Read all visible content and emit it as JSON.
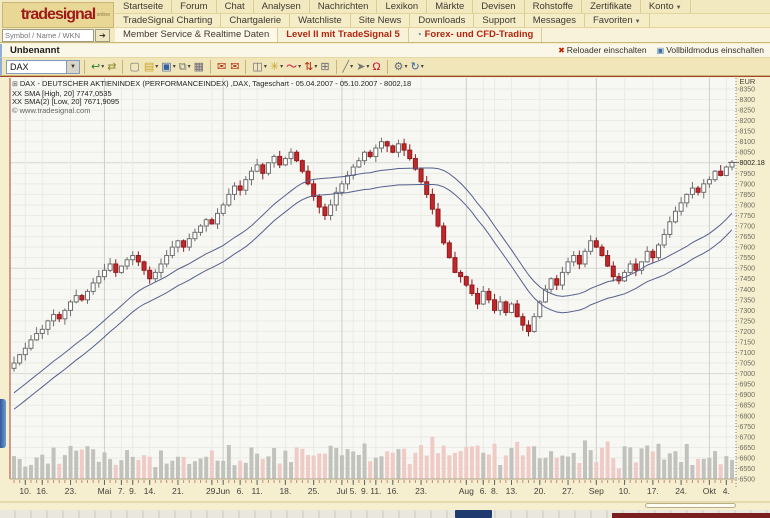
{
  "header": {
    "logo": {
      "brand": "tradesignal",
      "sub": "online"
    },
    "search": {
      "placeholder": "Symbol / Name / WKN",
      "go_label": "➔"
    },
    "menu_row1": [
      {
        "label": "Startseite"
      },
      {
        "label": "Forum"
      },
      {
        "label": "Chat"
      },
      {
        "label": "Analysen"
      },
      {
        "label": "Nachrichten"
      },
      {
        "label": "Lexikon"
      },
      {
        "label": "Märkte"
      },
      {
        "label": "Devisen"
      },
      {
        "label": "Rohstoffe"
      },
      {
        "label": "Zertifikate"
      },
      {
        "label": "Konto",
        "caret": true
      }
    ],
    "menu_row2": [
      {
        "label": "TradeSignal Charting"
      },
      {
        "label": "Chartgalerie"
      },
      {
        "label": "Watchliste"
      },
      {
        "label": "Site News"
      },
      {
        "label": "Downloads"
      },
      {
        "label": "Support"
      },
      {
        "label": "Messages"
      },
      {
        "label": "Favoriten",
        "caret": true
      }
    ],
    "menu_row3": [
      {
        "label": "Member Service & Realtime Daten",
        "style": "plain-cell"
      },
      {
        "label": "Level II mit TradeSignal 5",
        "style": "red"
      },
      {
        "label": "Forex- und CFD-Trading",
        "style": "red",
        "icon": "◔"
      }
    ]
  },
  "titlebar": {
    "title": "Unbenannt",
    "reloader_label": "Reloader einschalten",
    "fullscreen_label": "Vollbildmodus einschalten"
  },
  "toolbar": {
    "symbol_value": "DAX"
  },
  "chart": {
    "legend_title": "DAX - DEUTSCHER AKTIENINDEX (PERFORMANCEINDEX) ,DAX, Tageschart - 05.04.2007 - 05.10.2007 - 8002,18",
    "legend_sma_high": "XX SMA [High, 20] 7747,0535",
    "legend_sma_low": "XX SMA(2) [Low, 20] 7671,9095",
    "copyright": "© www.tradesignal.com",
    "currency_label": "EUR",
    "last_price_label": "8002.18"
  },
  "chart_data": {
    "type": "candlestick",
    "symbol": "DAX",
    "period": "Tageschart",
    "date_range": "05.04.2007 - 05.10.2007",
    "last_price": 8002.18,
    "y_min": 6500,
    "y_max": 8350,
    "y_step": 50,
    "major_lines": [
      8000,
      7500,
      7000,
      6500
    ],
    "closes": [
      7050,
      7090,
      7120,
      7160,
      7190,
      7210,
      7250,
      7280,
      7260,
      7300,
      7340,
      7370,
      7350,
      7390,
      7430,
      7460,
      7490,
      7520,
      7480,
      7510,
      7540,
      7560,
      7530,
      7490,
      7450,
      7480,
      7520,
      7560,
      7600,
      7630,
      7600,
      7640,
      7670,
      7700,
      7730,
      7710,
      7760,
      7800,
      7850,
      7890,
      7870,
      7920,
      7960,
      7990,
      7950,
      8000,
      8030,
      7990,
      8020,
      8050,
      8010,
      7960,
      7900,
      7840,
      7790,
      7750,
      7800,
      7860,
      7900,
      7940,
      7980,
      8010,
      8050,
      8030,
      8070,
      8100,
      8080,
      8050,
      8090,
      8060,
      8020,
      7970,
      7910,
      7850,
      7780,
      7700,
      7620,
      7550,
      7480,
      7460,
      7420,
      7380,
      7330,
      7390,
      7350,
      7300,
      7340,
      7290,
      7330,
      7270,
      7230,
      7200,
      7270,
      7340,
      7400,
      7450,
      7420,
      7480,
      7530,
      7560,
      7520,
      7580,
      7630,
      7600,
      7560,
      7510,
      7460,
      7440,
      7480,
      7520,
      7490,
      7530,
      7580,
      7550,
      7610,
      7660,
      7720,
      7770,
      7810,
      7850,
      7880,
      7860,
      7900,
      7920,
      7960,
      7940,
      7980,
      8002
    ],
    "pre_history": [
      6640,
      6670,
      6700,
      6730,
      6760,
      6790,
      6815,
      6840,
      6865,
      6890,
      6910,
      6930,
      6950,
      6970,
      6985,
      7000,
      7015,
      7025,
      7035,
      7045
    ],
    "sma_high": {
      "name": "SMA [High, 20]",
      "value": 7747.0535,
      "offset": 10
    },
    "sma_low": {
      "name": "SMA(2) [Low, 20]",
      "value": 7671.9095,
      "offset": -68
    },
    "x_labels": [
      {
        "t": "10.",
        "i": 2
      },
      {
        "t": "16.",
        "i": 5
      },
      {
        "t": "23.",
        "i": 10
      },
      {
        "t": "Mai",
        "i": 16
      },
      {
        "t": "7.",
        "i": 19
      },
      {
        "t": "9.",
        "i": 21
      },
      {
        "t": "14.",
        "i": 24
      },
      {
        "t": "21.",
        "i": 29
      },
      {
        "t": "29.",
        "i": 35
      },
      {
        "t": "Jun",
        "i": 37
      },
      {
        "t": "6.",
        "i": 40
      },
      {
        "t": "11.",
        "i": 43
      },
      {
        "t": "18.",
        "i": 48
      },
      {
        "t": "25.",
        "i": 53
      },
      {
        "t": "Jul",
        "i": 58
      },
      {
        "t": "5.",
        "i": 60
      },
      {
        "t": "9.",
        "i": 62
      },
      {
        "t": "11.",
        "i": 64
      },
      {
        "t": "16.",
        "i": 67
      },
      {
        "t": "23.",
        "i": 72
      },
      {
        "t": "Aug",
        "i": 80
      },
      {
        "t": "6.",
        "i": 83
      },
      {
        "t": "8.",
        "i": 85
      },
      {
        "t": "13.",
        "i": 88
      },
      {
        "t": "20.",
        "i": 93
      },
      {
        "t": "27.",
        "i": 98
      },
      {
        "t": "Sep",
        "i": 103
      },
      {
        "t": "10.",
        "i": 108
      },
      {
        "t": "17.",
        "i": 113
      },
      {
        "t": "24.",
        "i": 118
      },
      {
        "t": "Okt",
        "i": 123
      },
      {
        "t": "4.",
        "i": 126
      }
    ],
    "month_indices": [
      16,
      37,
      58,
      80,
      103,
      123
    ],
    "colors": {
      "up_fill": "#FFFFFF",
      "up_stroke": "#6E6E6E",
      "down_fill": "#C3272B",
      "down_stroke": "#8E1B1B",
      "sma": "#55608C",
      "vol_up": "#C2C2BC",
      "vol_down": "#F0CBC6",
      "plot_bg": "#F7F7F4",
      "grid_minor": "#EBEBE5",
      "grid_major": "#D8D8D1",
      "frame": "#A6432F"
    }
  }
}
